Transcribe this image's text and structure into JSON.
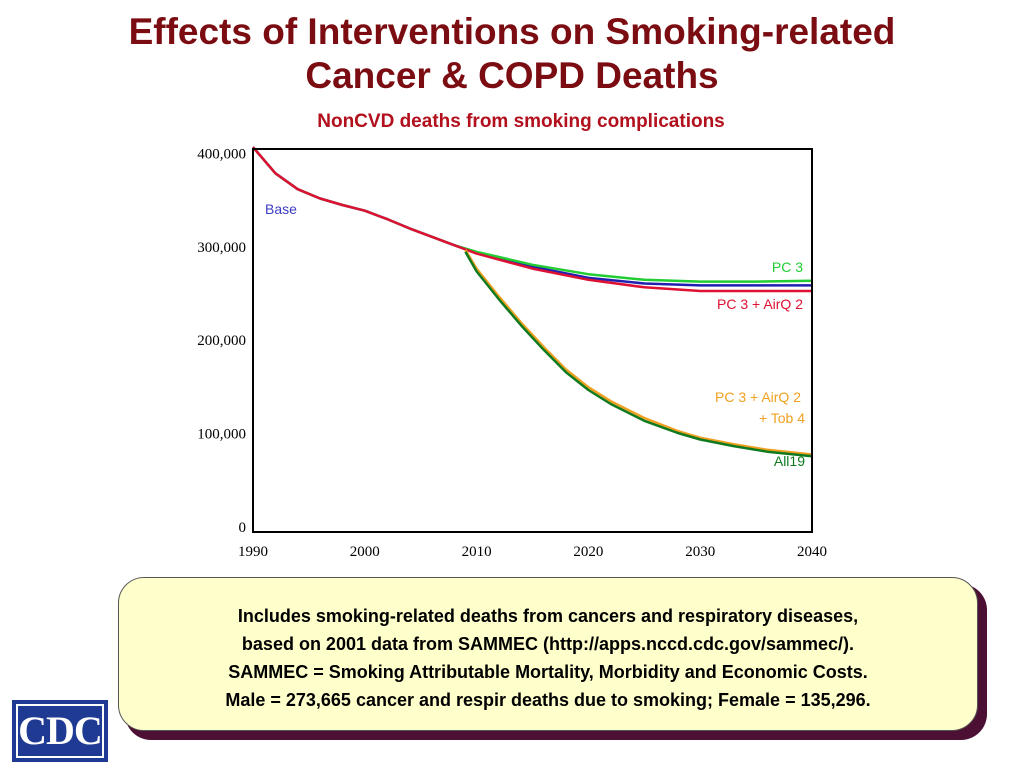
{
  "title": {
    "line1": "Effects of Interventions on Smoking-related",
    "line2": "Cancer & COPD Deaths"
  },
  "chart_data": {
    "type": "line",
    "title": "NonCVD deaths from smoking complications",
    "xlim": [
      1990,
      2040
    ],
    "ylim": [
      0,
      410000
    ],
    "x_ticks": [
      "1990",
      "2000",
      "2010",
      "2020",
      "2030",
      "2040"
    ],
    "y_ticks": [
      "0",
      "100,000",
      "200,000",
      "300,000",
      "400,000"
    ],
    "grid": false,
    "series": [
      {
        "name": "Base",
        "color": "#2020b0",
        "x": [
          1990,
          1992,
          1994,
          1996,
          1998,
          2000,
          2002,
          2004,
          2006,
          2008,
          2010,
          2015,
          2020,
          2025,
          2030,
          2035,
          2040
        ],
        "y": [
          412000,
          384000,
          367000,
          357000,
          350000,
          344000,
          335000,
          325000,
          316000,
          307000,
          299000,
          284000,
          272000,
          266000,
          264000,
          264000,
          264000
        ]
      },
      {
        "name": "PC 3",
        "color": "#22cc33",
        "x": [
          1990,
          1992,
          1994,
          1996,
          1998,
          2000,
          2002,
          2004,
          2006,
          2008,
          2010,
          2015,
          2020,
          2025,
          2030,
          2035,
          2040
        ],
        "y": [
          412000,
          384000,
          367000,
          357000,
          350000,
          344000,
          335000,
          325000,
          316000,
          307000,
          300000,
          286000,
          276000,
          270000,
          268000,
          268000,
          269000
        ]
      },
      {
        "name": "PC 3 + AirQ 2",
        "color": "#dd1133",
        "x": [
          1990,
          1992,
          1994,
          1996,
          1998,
          2000,
          2002,
          2004,
          2006,
          2008,
          2010,
          2015,
          2020,
          2025,
          2030,
          2035,
          2040
        ],
        "y": [
          412000,
          384000,
          367000,
          357000,
          350000,
          344000,
          335000,
          325000,
          316000,
          307000,
          298000,
          282000,
          270000,
          262000,
          258000,
          258000,
          258000
        ]
      },
      {
        "name": "PC 3 + AirQ 2 + Tob 4",
        "color": "#f0a020",
        "x": [
          2009,
          2010,
          2012,
          2014,
          2016,
          2018,
          2020,
          2022,
          2025,
          2028,
          2030,
          2033,
          2036,
          2040
        ],
        "y": [
          302000,
          282000,
          252000,
          224000,
          198000,
          174000,
          155000,
          140000,
          122000,
          108000,
          101000,
          94000,
          88000,
          83000
        ]
      },
      {
        "name": "All19",
        "color": "#0f7a1f",
        "x": [
          2009,
          2010,
          2012,
          2014,
          2016,
          2018,
          2020,
          2022,
          2025,
          2028,
          2030,
          2033,
          2036,
          2040
        ],
        "y": [
          300000,
          279000,
          249000,
          221000,
          195000,
          171000,
          152000,
          137000,
          119000,
          106000,
          99000,
          92000,
          86000,
          81000
        ]
      }
    ],
    "labels": {
      "base": "Base",
      "pc3": "PC 3",
      "pc3_airq2": "PC 3 + AirQ 2",
      "tob_line1": "PC 3 + AirQ 2",
      "tob_line2": "+ Tob 4",
      "all19": "All19"
    }
  },
  "note": {
    "line1": "Includes smoking-related deaths from cancers and respiratory diseases,",
    "line2": "based on 2001 data from SAMMEC (http://apps.nccd.cdc.gov/sammec/).",
    "line3": "SAMMEC = Smoking Attributable Mortality, Morbidity and Economic Costs.",
    "line4": "Male = 273,665 cancer and respir deaths due to smoking; Female = 135,296."
  },
  "logo": {
    "text": "CDC"
  }
}
